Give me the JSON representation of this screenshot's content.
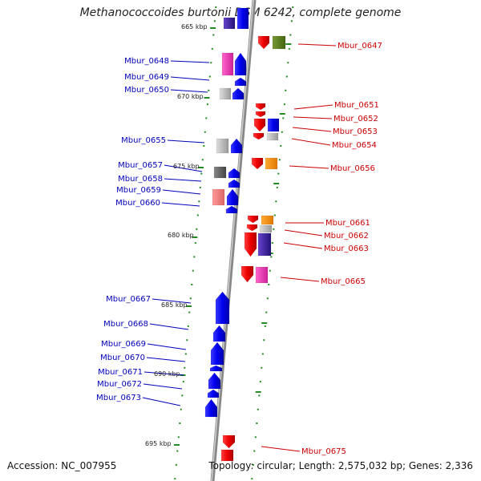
{
  "title": "Methanococcoides burtonii DSM 6242, complete genome",
  "footer": {
    "accession": "Accession: NC_007955",
    "summary": "Topology: circular; Length: 2,575,032 bp; Genes: 2,336"
  },
  "colors": {
    "left_label": "#0000bb",
    "right_label": "#cc0000",
    "tick": "#228b22",
    "axis": "#999999"
  },
  "kbp_labels": [
    {
      "id": "665",
      "text": "665 kbp"
    },
    {
      "id": "670",
      "text": "670 kbp"
    },
    {
      "id": "675",
      "text": "675 kbp"
    },
    {
      "id": "680",
      "text": "680 kbp"
    },
    {
      "id": "685",
      "text": "685 kbp"
    },
    {
      "id": "690",
      "text": "690 kbp"
    },
    {
      "id": "695",
      "text": "695 kbp"
    }
  ],
  "left_genes": [
    {
      "id": "0648",
      "label": "Mbur_0648"
    },
    {
      "id": "0649",
      "label": "Mbur_0649"
    },
    {
      "id": "0650",
      "label": "Mbur_0650"
    },
    {
      "id": "0655",
      "label": "Mbur_0655"
    },
    {
      "id": "0657",
      "label": "Mbur_0657"
    },
    {
      "id": "0658",
      "label": "Mbur_0658"
    },
    {
      "id": "0659",
      "label": "Mbur_0659"
    },
    {
      "id": "0660",
      "label": "Mbur_0660"
    },
    {
      "id": "0667",
      "label": "Mbur_0667"
    },
    {
      "id": "0668",
      "label": "Mbur_0668"
    },
    {
      "id": "0669",
      "label": "Mbur_0669"
    },
    {
      "id": "0670",
      "label": "Mbur_0670"
    },
    {
      "id": "0671",
      "label": "Mbur_0671"
    },
    {
      "id": "0672",
      "label": "Mbur_0672"
    },
    {
      "id": "0673",
      "label": "Mbur_0673"
    }
  ],
  "right_genes": [
    {
      "id": "0647",
      "label": "Mbur_0647"
    },
    {
      "id": "0651",
      "label": "Mbur_0651"
    },
    {
      "id": "0652",
      "label": "Mbur_0652"
    },
    {
      "id": "0653",
      "label": "Mbur_0653"
    },
    {
      "id": "0654",
      "label": "Mbur_0654"
    },
    {
      "id": "0656",
      "label": "Mbur_0656"
    },
    {
      "id": "0661",
      "label": "Mbur_0661"
    },
    {
      "id": "0662",
      "label": "Mbur_0662"
    },
    {
      "id": "0663",
      "label": "Mbur_0663"
    },
    {
      "id": "0665",
      "label": "Mbur_0665"
    },
    {
      "id": "0675",
      "label": "Mbur_0675"
    }
  ]
}
